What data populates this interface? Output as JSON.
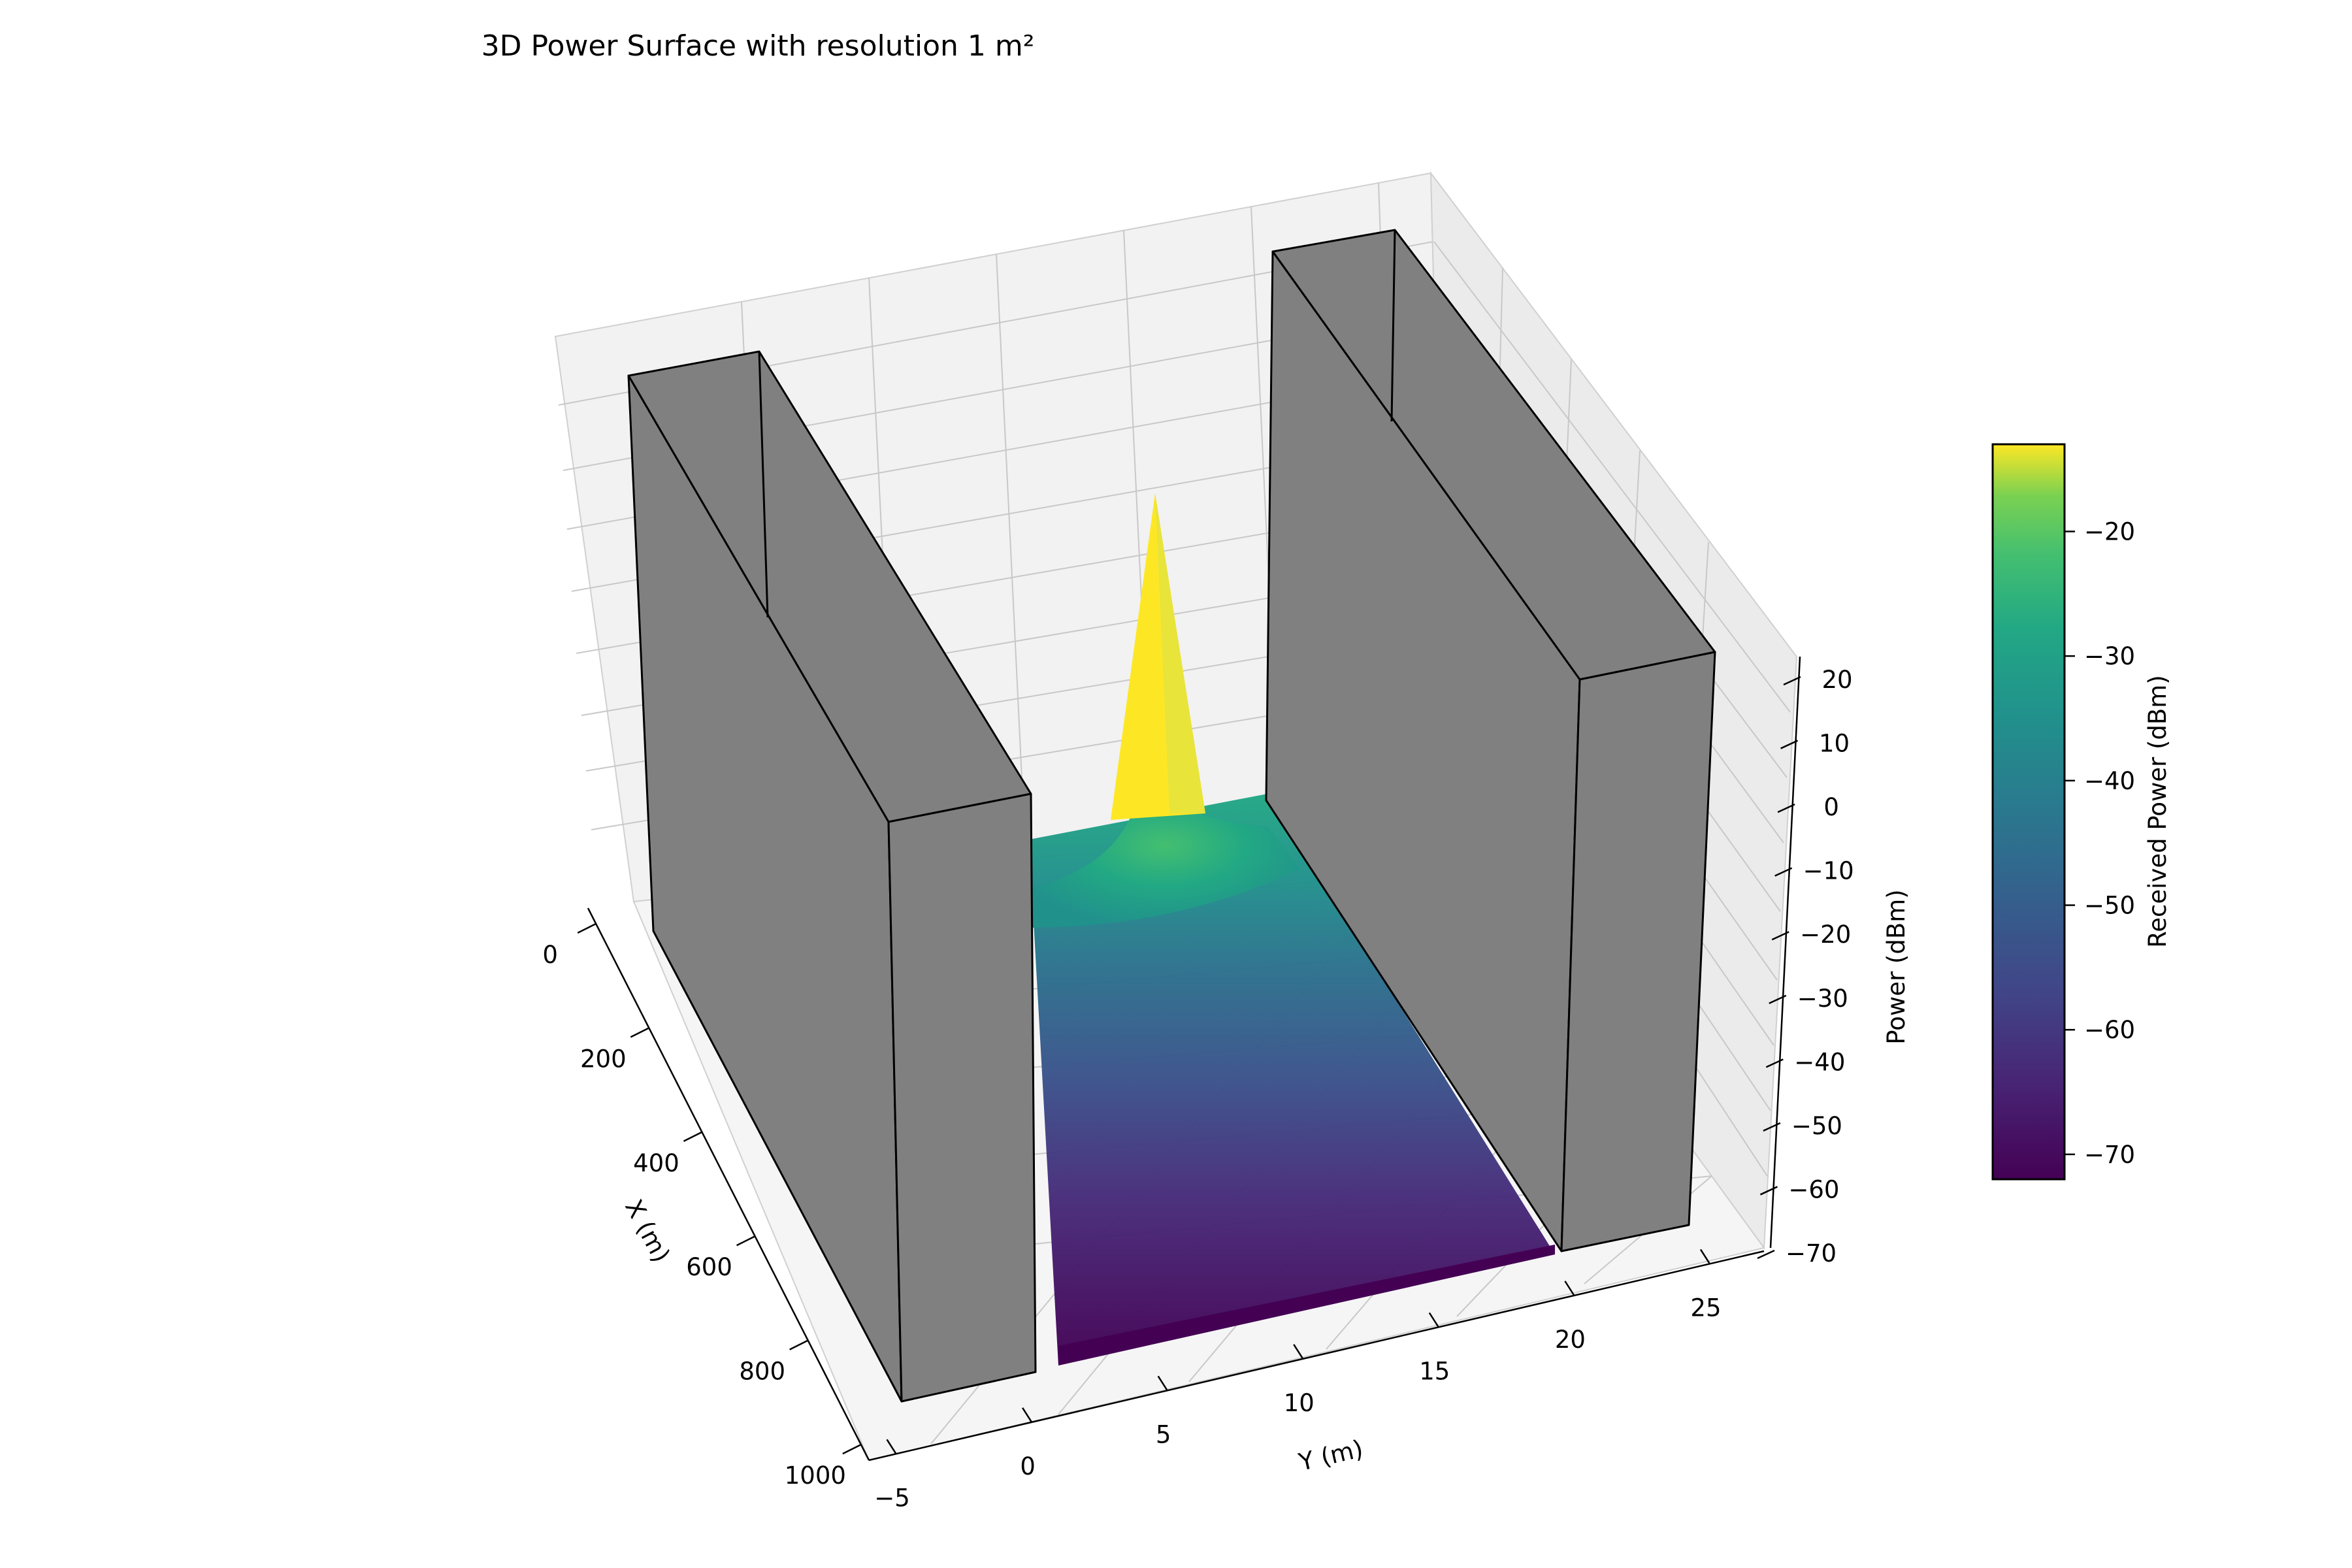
{
  "chart_data": {
    "type": "surface",
    "title": "3D Power Surface with resolution 1 m²",
    "xlabel": "X (m)",
    "ylabel": "Y (m)",
    "zlabel": "Power (dBm)",
    "colorbar_label": "Received Power (dBm)",
    "colormap": "viridis",
    "x_ticks": [
      "0",
      "200",
      "400",
      "600",
      "800",
      "1000"
    ],
    "y_ticks": [
      "−5",
      "0",
      "5",
      "10",
      "15",
      "20",
      "25"
    ],
    "z_ticks": [
      "20",
      "10",
      "0",
      "−10",
      "−20",
      "−30",
      "−40",
      "−50",
      "−60",
      "−70"
    ],
    "colorbar_ticks": [
      "−20",
      "−30",
      "−40",
      "−50",
      "−60",
      "−70"
    ],
    "xlim": [
      0,
      1000
    ],
    "ylim": [
      -6,
      27
    ],
    "zlim": [
      -70,
      20
    ],
    "colorbar_range": [
      -72,
      -13
    ],
    "surface": {
      "x_range": [
        0,
        1000
      ],
      "y_range": [
        0,
        20
      ],
      "peak": {
        "x": 0,
        "y": 10,
        "power_dbm": -13
      },
      "far_field_power_dbm": -70
    },
    "walls": [
      {
        "name": "left-wall",
        "y_range": [
          -5,
          0
        ],
        "x_range": [
          0,
          1000
        ],
        "color": "#808080"
      },
      {
        "name": "right-wall",
        "y_range": [
          20,
          25
        ],
        "x_range": [
          0,
          1000
        ],
        "color": "#808080"
      }
    ],
    "grid": true
  }
}
